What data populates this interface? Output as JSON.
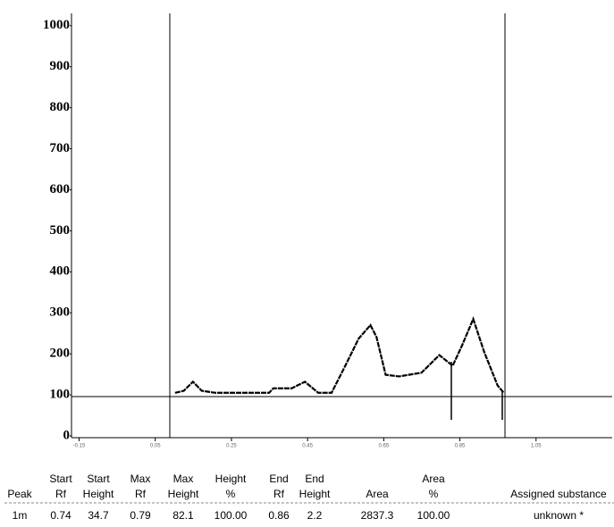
{
  "chart_data": {
    "type": "line",
    "x": [
      0.102,
      0.125,
      0.149,
      0.172,
      0.208,
      0.349,
      0.36,
      0.408,
      0.443,
      0.478,
      0.513,
      0.549,
      0.584,
      0.615,
      0.631,
      0.655,
      0.69,
      0.749,
      0.796,
      0.831,
      0.855,
      0.885,
      0.914,
      0.949,
      0.965
    ],
    "values": [
      105,
      110,
      132,
      110,
      105,
      105,
      116,
      116,
      132,
      105,
      105,
      171,
      237,
      270,
      241,
      149,
      145,
      154,
      197,
      171,
      219,
      285,
      204,
      123,
      105
    ],
    "color": "#000000",
    "xlim": [
      -0.17,
      1.25
    ],
    "xticks": [
      -0.15,
      0.05,
      0.25,
      0.45,
      0.65,
      0.85,
      1.05
    ],
    "ylim": [
      0,
      1030
    ],
    "yticks": [
      0,
      100,
      200,
      300,
      400,
      500,
      600,
      700,
      800,
      900,
      1000
    ]
  },
  "table": {
    "headers": [
      [
        "Peak"
      ],
      [
        "Start",
        "Rf"
      ],
      [
        "Start",
        "Height"
      ],
      [
        "Max",
        "Rf"
      ],
      [
        "Max",
        "Height"
      ],
      [
        "Height",
        "%"
      ],
      [
        "End",
        "Rf"
      ],
      [
        "End",
        "Height"
      ],
      [
        "Area"
      ],
      [
        "Area",
        "%"
      ],
      [
        "Assigned substance"
      ]
    ],
    "rows": [
      [
        "1m",
        "0.74",
        "34.7",
        "0.79",
        "82.1",
        "100.00",
        "0.86",
        "2.2",
        "2837.3",
        "100.00",
        "unknown *"
      ]
    ]
  }
}
